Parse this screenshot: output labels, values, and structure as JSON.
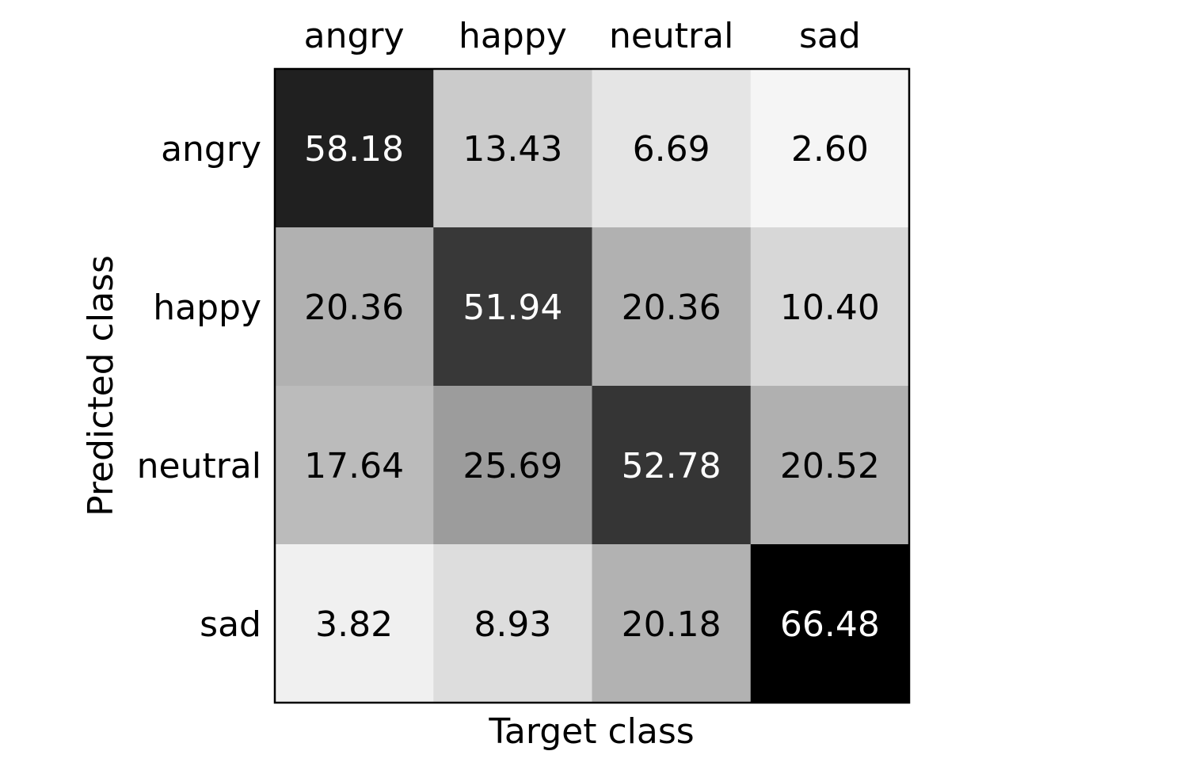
{
  "chart_data": {
    "type": "heatmap",
    "title": "",
    "xlabel": "Target class",
    "ylabel": "Predicted class",
    "x_categories": [
      "angry",
      "happy",
      "neutral",
      "sad"
    ],
    "y_categories": [
      "angry",
      "happy",
      "neutral",
      "sad"
    ],
    "value_labels": [
      [
        "58.18",
        "13.43",
        "6.69",
        "2.60"
      ],
      [
        "20.36",
        "51.94",
        "20.36",
        "10.40"
      ],
      [
        "17.64",
        "25.69",
        "52.78",
        "20.52"
      ],
      [
        "3.82",
        "8.93",
        "20.18",
        "66.48"
      ]
    ],
    "values": [
      [
        58.18,
        13.43,
        6.69,
        2.6
      ],
      [
        20.36,
        51.94,
        20.36,
        10.4
      ],
      [
        17.64,
        25.69,
        52.78,
        20.52
      ],
      [
        3.82,
        8.93,
        20.18,
        66.48
      ]
    ],
    "value_range": [
      0,
      66.48
    ],
    "colormap": "grayscale (white = low, black = high)",
    "x_axis_position": "top",
    "grid": false,
    "legend": "none"
  }
}
